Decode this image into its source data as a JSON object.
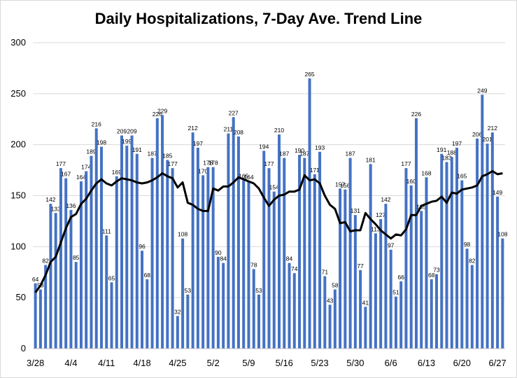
{
  "chart_data": {
    "type": "bar",
    "title": "Daily Hospitalizations, 7-Day Ave. Trend Line",
    "xlabel": "",
    "ylabel": "",
    "ylim": [
      0,
      300
    ],
    "yticks": [
      0,
      50,
      100,
      150,
      200,
      250,
      300
    ],
    "grid": true,
    "legend": "none",
    "x_tick_labels": [
      {
        "index": 0,
        "label": "3/28"
      },
      {
        "index": 7,
        "label": "4/4"
      },
      {
        "index": 14,
        "label": "4/11"
      },
      {
        "index": 21,
        "label": "4/18"
      },
      {
        "index": 28,
        "label": "4/25"
      },
      {
        "index": 35,
        "label": "5/2"
      },
      {
        "index": 42,
        "label": "5/9"
      },
      {
        "index": 49,
        "label": "5/16"
      },
      {
        "index": 56,
        "label": "5/23"
      },
      {
        "index": 63,
        "label": "5/30"
      },
      {
        "index": 70,
        "label": "6/6"
      },
      {
        "index": 77,
        "label": "6/13"
      },
      {
        "index": 84,
        "label": "6/20"
      },
      {
        "index": 91,
        "label": "6/27"
      }
    ],
    "series": [
      {
        "type": "bar",
        "color": "#4472c4",
        "values": [
          64,
          58,
          82,
          142,
          133,
          177,
          167,
          136,
          85,
          164,
          174,
          189,
          216,
          198,
          111,
          65,
          169,
          209,
          199,
          209,
          191,
          96,
          68,
          187,
          226,
          229,
          185,
          177,
          32,
          108,
          53,
          212,
          197,
          170,
          178,
          178,
          90,
          84,
          211,
          227,
          208,
          165,
          164,
          78,
          53,
          194,
          177,
          154,
          210,
          187,
          84,
          74,
          190,
          187,
          265,
          171,
          193,
          71,
          43,
          58,
          157,
          156,
          187,
          131,
          77,
          41,
          181,
          113,
          127,
          142,
          97,
          51,
          66,
          177,
          160,
          226,
          135,
          168,
          68,
          73,
          191,
          183,
          188,
          197,
          165,
          98,
          82,
          206,
          249,
          201,
          212,
          149,
          108
        ]
      },
      {
        "type": "line",
        "color": "#000000",
        "values": [
          55,
          62,
          72,
          85,
          90,
          104,
          118,
          129,
          132,
          142,
          147,
          155,
          162,
          166,
          162,
          160,
          164,
          167,
          166,
          165,
          163,
          162,
          163,
          165,
          168,
          172,
          169,
          167,
          158,
          163,
          143,
          141,
          137,
          135,
          135,
          157,
          155,
          159,
          159,
          163,
          168,
          166,
          164,
          162,
          157,
          148,
          140,
          146,
          150,
          151,
          154,
          154,
          156,
          170,
          165,
          166,
          162,
          150,
          141,
          137,
          123,
          124,
          115,
          116,
          116,
          133,
          127,
          122,
          116,
          112,
          108,
          112,
          111,
          117,
          131,
          131,
          140,
          142,
          144,
          145,
          149,
          143,
          153,
          152,
          156,
          157,
          158,
          160,
          169,
          171,
          174,
          171,
          172
        ]
      }
    ]
  }
}
